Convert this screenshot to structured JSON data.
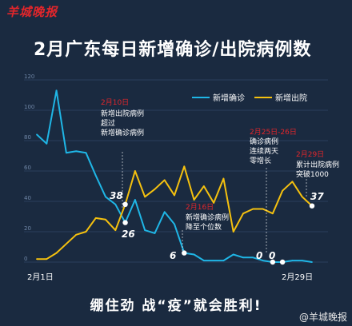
{
  "brand": "羊城晚报",
  "title": "2月广东每日新增确诊/出院病例数",
  "slogan": "绷住劲 战“疫”就会胜利!",
  "watermark": "@羊城晚报",
  "colors": {
    "confirmed": "#1fb6e6",
    "discharged": "#f5c10f",
    "accent": "#e2262b",
    "background": "#1a2a40"
  },
  "chart_data": {
    "type": "line",
    "title": "2月广东每日新增确诊/出院病例数",
    "x_start_label": "2月1日",
    "x_end_label": "2月29日",
    "x": [
      1,
      2,
      3,
      4,
      5,
      6,
      7,
      8,
      9,
      10,
      11,
      12,
      13,
      14,
      15,
      16,
      17,
      18,
      19,
      20,
      21,
      22,
      23,
      24,
      25,
      26,
      27,
      28,
      29
    ],
    "ylim": [
      0,
      120
    ],
    "yticks": [
      0,
      20,
      40,
      60,
      80,
      100,
      120
    ],
    "grid": true,
    "legend_position": "top-right",
    "series": [
      {
        "name": "新增确诊",
        "color": "#1fb6e6",
        "values": [
          84,
          78,
          113,
          72,
          73,
          72,
          57,
          43,
          38,
          26,
          41,
          21,
          19,
          33,
          25,
          6,
          5,
          1,
          1,
          1,
          5,
          3,
          3,
          1,
          0,
          0,
          1,
          1,
          0
        ]
      },
      {
        "name": "新增出院",
        "color": "#f5c10f",
        "values": [
          2,
          2,
          6,
          12,
          18,
          20,
          29,
          28,
          21,
          38,
          60,
          43,
          48,
          54,
          44,
          63,
          41,
          50,
          39,
          55,
          20,
          32,
          35,
          35,
          32,
          47,
          53,
          43,
          37
        ]
      }
    ],
    "annotations": [
      {
        "date": "2月10日",
        "lines": [
          "新增出院病例",
          "超过",
          "新增确诊病例"
        ]
      },
      {
        "date": "2月16日",
        "lines": [
          "新增确诊病例",
          "降至个位数"
        ]
      },
      {
        "date": "2月25日-26日",
        "lines": [
          "确诊病例",
          "连续两天",
          "零增长"
        ]
      },
      {
        "date": "2月29日",
        "lines": [
          "累计出院病例",
          "突破1000"
        ]
      }
    ],
    "value_labels": [
      "38",
      "26",
      "6",
      "0",
      "0",
      "37"
    ]
  }
}
